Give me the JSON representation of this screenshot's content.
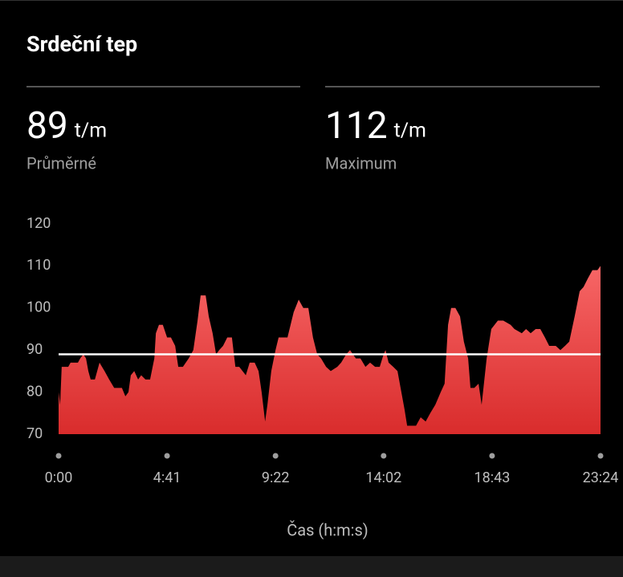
{
  "header": {
    "title": "Srdeční tep"
  },
  "stats": [
    {
      "value": 89,
      "unit": "t/m",
      "label": "Průměrné"
    },
    {
      "value": 112,
      "unit": "t/m",
      "label": "Maximum"
    }
  ],
  "chart_data": {
    "type": "area",
    "x_label": "Čas (h:m:s)",
    "color": "#e53935",
    "x": [
      0,
      4,
      8,
      25,
      31,
      50,
      56,
      64,
      71,
      77,
      83,
      94,
      106,
      119,
      131,
      144,
      164,
      173,
      181,
      187,
      196,
      206,
      214,
      225,
      237,
      248,
      252,
      260,
      270,
      281,
      291,
      302,
      310,
      322,
      337,
      349,
      360,
      368,
      381,
      389,
      399,
      408,
      416,
      426,
      437,
      449,
      458,
      468,
      485,
      495,
      508,
      518,
      526,
      535,
      541,
      551,
      562,
      570,
      593,
      601,
      609,
      622,
      634,
      647,
      659,
      670,
      680,
      693,
      705,
      722,
      732,
      745,
      755,
      770,
      782,
      795,
      807,
      820,
      832,
      842,
      847,
      855,
      867,
      878,
      890,
      896,
      903,
      926,
      938,
      951,
      963,
      976,
      990,
      1000,
      1009,
      1017,
      1028,
      1040,
      1050,
      1061,
      1067,
      1077,
      1088,
      1096,
      1109,
      1121,
      1138,
      1152,
      1171,
      1181,
      1200,
      1211,
      1223,
      1236,
      1248,
      1260,
      1271,
      1288,
      1300,
      1312,
      1323,
      1337,
      1350,
      1360,
      1371,
      1383,
      1396,
      1404
    ],
    "values": [
      80,
      77,
      86,
      86,
      87,
      87,
      88,
      89,
      88,
      85,
      83,
      83,
      87,
      85,
      83,
      81,
      81,
      79,
      80,
      84,
      85,
      83,
      84,
      83,
      83,
      88,
      94,
      96,
      96,
      93,
      93,
      91,
      86,
      86,
      88,
      90,
      97,
      103,
      103,
      98,
      94,
      89,
      90,
      91,
      93,
      93,
      86,
      86,
      84,
      87,
      87,
      85,
      80,
      73,
      77,
      85,
      90,
      93,
      93,
      96,
      99,
      102,
      100,
      100,
      93,
      89,
      88,
      86,
      85,
      86,
      87,
      89,
      90,
      88,
      88,
      86,
      87,
      86,
      86,
      89,
      90,
      87,
      86,
      85,
      79,
      76,
      72,
      72,
      74,
      73,
      75,
      77,
      80,
      82,
      96,
      100,
      100,
      98,
      92,
      88,
      81,
      81,
      82,
      77,
      88,
      95,
      97,
      97,
      96,
      95,
      94,
      95,
      94,
      95,
      95,
      93,
      91,
      91,
      90,
      91,
      92,
      98,
      104,
      105,
      107,
      109,
      109,
      110
    ],
    "xlim": [
      0,
      1404
    ],
    "xticks": [
      {
        "value": 0,
        "label": "0:00"
      },
      {
        "value": 281,
        "label": "4:41"
      },
      {
        "value": 562,
        "label": "9:22"
      },
      {
        "value": 842,
        "label": "14:02"
      },
      {
        "value": 1123,
        "label": "18:43"
      },
      {
        "value": 1404,
        "label": "23:24"
      }
    ],
    "ylim": [
      70,
      120
    ],
    "yticks": [
      70,
      80,
      90,
      100,
      110,
      120
    ]
  }
}
